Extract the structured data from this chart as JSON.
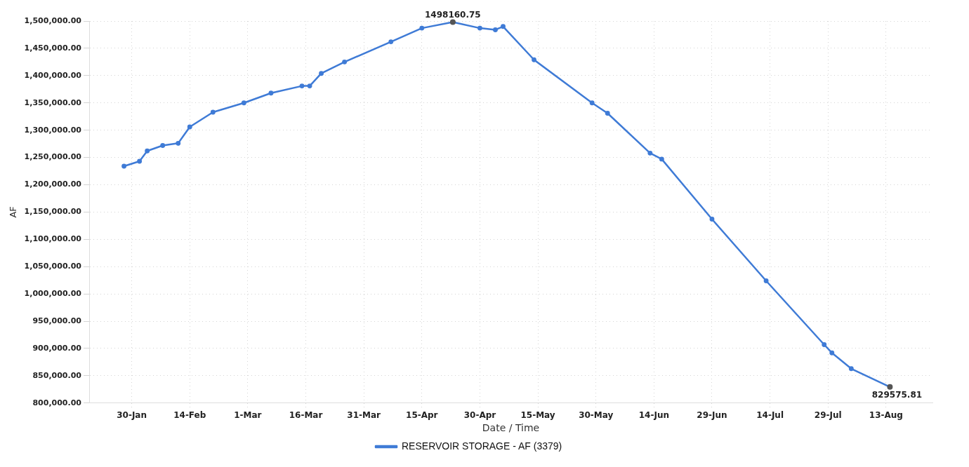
{
  "chart_data": {
    "type": "line",
    "xlabel": "Date / Time",
    "ylabel": "AF",
    "x": [
      "--01-28",
      "--02-01",
      "--02-03",
      "--02-07",
      "--02-11",
      "--02-14",
      "--02-20",
      "--02-28",
      "--03-07",
      "--03-15",
      "--03-17",
      "--03-20",
      "--03-26",
      "--04-07",
      "--04-15",
      "--04-23",
      "--04-30",
      "--05-04",
      "--05-06",
      "--05-14",
      "--05-29",
      "--06-02",
      "--06-13",
      "--06-16",
      "--06-29",
      "--07-13",
      "--07-28",
      "--07-30",
      "--08-04",
      "--08-14"
    ],
    "series": [
      {
        "name": "RESERVOIR STORAGE - AF (3379)",
        "color": "#3f7bd6",
        "values": [
          1234000,
          1243000,
          1262000,
          1272000,
          1276000,
          1306000,
          1333000,
          1350000,
          1368000,
          1381000,
          1381000,
          1404000,
          1425000,
          1462000,
          1487000,
          1498160.75,
          1487000,
          1484000,
          1490000,
          1429000,
          1350000,
          1331000,
          1258000,
          1247000,
          1137000,
          1024000,
          907000,
          892000,
          863000,
          829575.81
        ]
      }
    ],
    "xlim": [
      "--01-19",
      "--08-25"
    ],
    "xticks": [
      {
        "value": "--01-30",
        "label": "30-Jan"
      },
      {
        "value": "--02-14",
        "label": "14-Feb"
      },
      {
        "value": "--03-01",
        "label": "1-Mar"
      },
      {
        "value": "--03-16",
        "label": "16-Mar"
      },
      {
        "value": "--03-31",
        "label": "31-Mar"
      },
      {
        "value": "--04-15",
        "label": "15-Apr"
      },
      {
        "value": "--04-30",
        "label": "30-Apr"
      },
      {
        "value": "--05-15",
        "label": "15-May"
      },
      {
        "value": "--05-30",
        "label": "30-May"
      },
      {
        "value": "--06-14",
        "label": "14-Jun"
      },
      {
        "value": "--06-29",
        "label": "29-Jun"
      },
      {
        "value": "--07-14",
        "label": "14-Jul"
      },
      {
        "value": "--07-29",
        "label": "29-Jul"
      },
      {
        "value": "--08-13",
        "label": "13-Aug"
      }
    ],
    "ylim": [
      800000,
      1500000
    ],
    "yticks": [
      {
        "value": 800000,
        "label": "800,000.00"
      },
      {
        "value": 850000,
        "label": "850,000.00"
      },
      {
        "value": 900000,
        "label": "900,000.00"
      },
      {
        "value": 950000,
        "label": "950,000.00"
      },
      {
        "value": 1000000,
        "label": "1,000,000.00"
      },
      {
        "value": 1050000,
        "label": "1,050,000.00"
      },
      {
        "value": 1100000,
        "label": "1,100,000.00"
      },
      {
        "value": 1150000,
        "label": "1,150,000.00"
      },
      {
        "value": 1200000,
        "label": "1,200,000.00"
      },
      {
        "value": 1250000,
        "label": "1,250,000.00"
      },
      {
        "value": 1300000,
        "label": "1,300,000.00"
      },
      {
        "value": 1350000,
        "label": "1,350,000.00"
      },
      {
        "value": 1400000,
        "label": "1,400,000.00"
      },
      {
        "value": 1450000,
        "label": "1,450,000.00"
      },
      {
        "value": 1500000,
        "label": "1,500,000.00"
      }
    ],
    "annotations": [
      {
        "text": "1498160.75",
        "x": "--04-23",
        "y": 1498160.75
      },
      {
        "text": "829575.81",
        "x": "--08-14",
        "y": 829575.81
      }
    ],
    "grid": true,
    "legend": "bottom",
    "marker": "circle",
    "line_style": "solid"
  }
}
